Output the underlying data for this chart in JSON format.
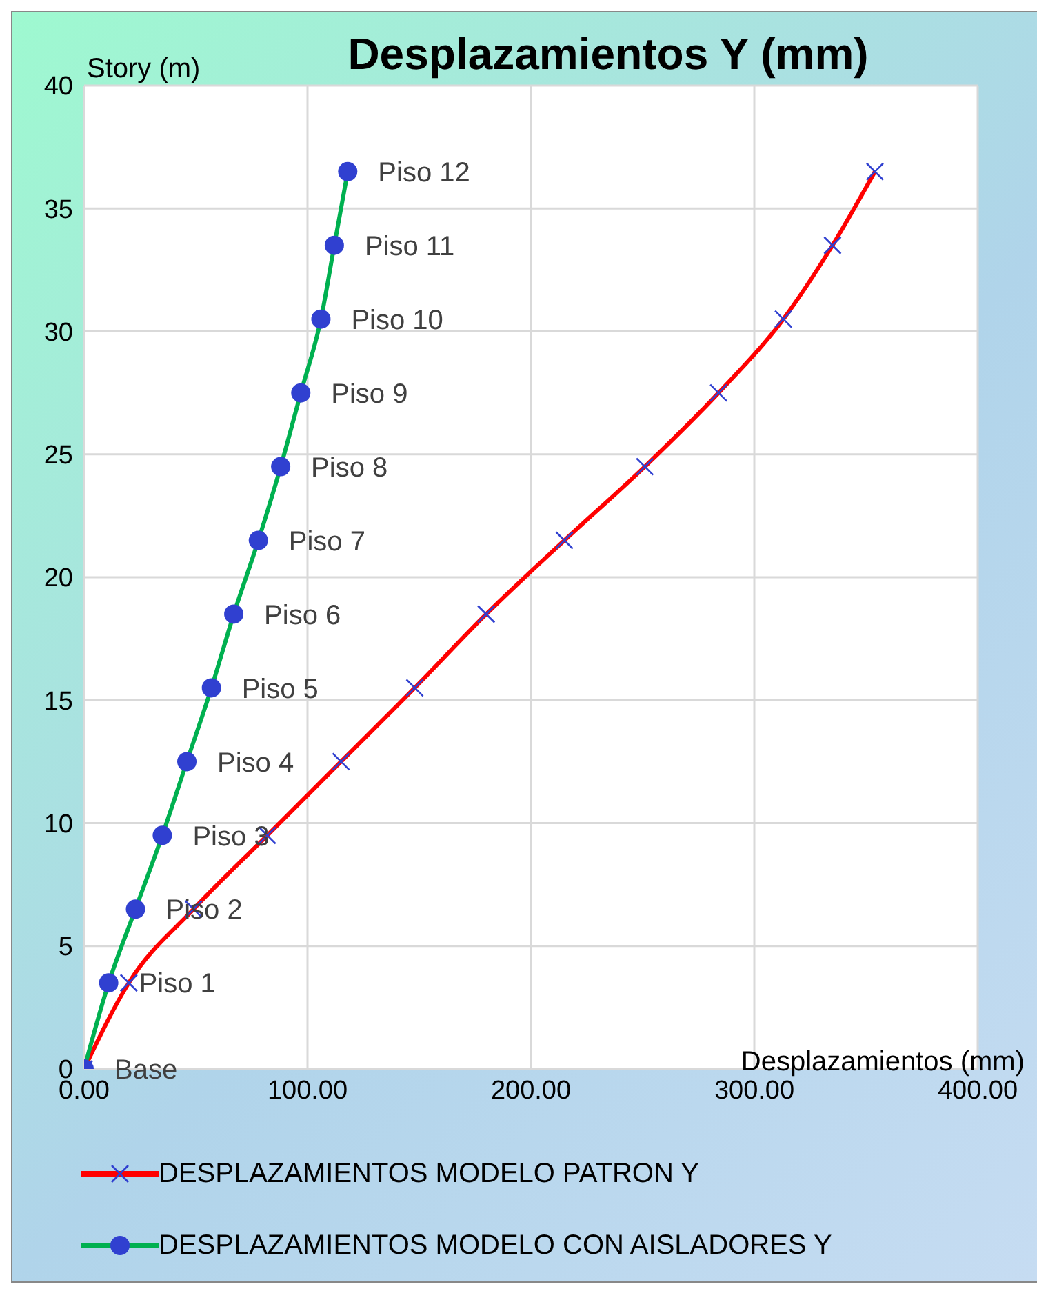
{
  "chart_data": {
    "type": "line",
    "title": "Desplazamientos Y (mm)",
    "xlabel": "Desplazamientos (mm)",
    "ylabel": "Story (m)",
    "xlim": [
      0,
      400
    ],
    "xticks": [
      {
        "value": 0,
        "label": "0.00"
      },
      {
        "value": 100,
        "label": "100.00"
      },
      {
        "value": 200,
        "label": "200.00"
      },
      {
        "value": 300,
        "label": "300.00"
      },
      {
        "value": 400,
        "label": "400.00"
      }
    ],
    "ylim": [
      0,
      40
    ],
    "yticks": [
      0,
      5,
      10,
      15,
      20,
      25,
      30,
      35,
      40
    ],
    "grid": true,
    "legend": "bottom",
    "series": [
      {
        "name": "DESPLAZAMIENTOS MODELO PATRON Y",
        "color": "#ff0000",
        "marker": "cross",
        "x": [
          0,
          20,
          49,
          82,
          115,
          148,
          180,
          215,
          251,
          284,
          313,
          335,
          354
        ],
        "values": [
          0,
          3.5,
          6.5,
          9.5,
          12.5,
          15.5,
          18.5,
          21.5,
          24.5,
          27.5,
          30.5,
          33.5,
          36.5
        ]
      },
      {
        "name": "DESPLAZAMIENTOS MODELO CON AISLADORES Y",
        "color": "#00b050",
        "marker": "circle",
        "x": [
          0,
          11,
          23,
          35,
          46,
          57,
          67,
          78,
          88,
          97,
          106,
          112,
          118
        ],
        "values": [
          0,
          3.5,
          6.5,
          9.5,
          12.5,
          15.5,
          18.5,
          21.5,
          24.5,
          27.5,
          30.5,
          33.5,
          36.5
        ]
      }
    ],
    "annotations": [
      {
        "text": "Base",
        "x": 0,
        "y": 0
      },
      {
        "text": "Piso 1",
        "x": 11,
        "y": 3.5
      },
      {
        "text": "Piso 2",
        "x": 23,
        "y": 6.5
      },
      {
        "text": "Piso 3",
        "x": 35,
        "y": 9.5
      },
      {
        "text": "Piso 4",
        "x": 46,
        "y": 12.5
      },
      {
        "text": "Piso 5",
        "x": 57,
        "y": 15.5
      },
      {
        "text": "Piso 6",
        "x": 67,
        "y": 18.5
      },
      {
        "text": "Piso 7",
        "x": 78,
        "y": 21.5
      },
      {
        "text": "Piso 8",
        "x": 88,
        "y": 24.5
      },
      {
        "text": "Piso 9",
        "x": 97,
        "y": 27.5
      },
      {
        "text": "Piso 10",
        "x": 106,
        "y": 30.5
      },
      {
        "text": "Piso 11",
        "x": 112,
        "y": 33.5
      },
      {
        "text": "Piso 12",
        "x": 118,
        "y": 36.5
      }
    ]
  }
}
